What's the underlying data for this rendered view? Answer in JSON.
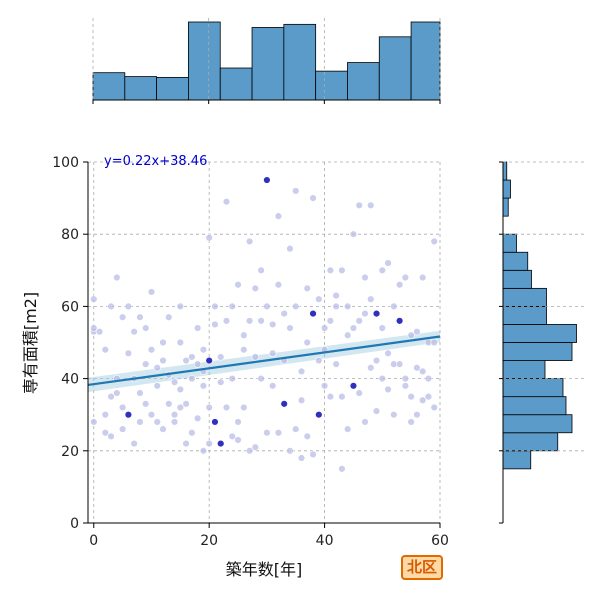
{
  "chart_data": {
    "type": "scatter",
    "xlabel": "築年数[年]",
    "ylabel": "専有面積[m2]",
    "xlim": [
      -1,
      60
    ],
    "ylim": [
      0,
      100
    ],
    "x_ticks": [
      0,
      20,
      40,
      60
    ],
    "y_ticks": [
      0,
      20,
      40,
      60,
      80,
      100
    ],
    "grid": true,
    "regression": {
      "slope": 0.22,
      "intercept": 38.46,
      "label": "y=0.22x+38.46"
    },
    "x_histogram": {
      "bin_edges": [
        0,
        5.5,
        11,
        16.5,
        22,
        27.5,
        33,
        38.5,
        44,
        49.5,
        55,
        60
      ],
      "relative_heights": [
        0.35,
        0.3,
        0.29,
        1.0,
        0.41,
        0.93,
        0.97,
        0.37,
        0.48,
        0.81,
        1.0
      ]
    },
    "y_histogram": {
      "bin_edges": [
        15,
        20,
        25,
        30,
        35,
        40,
        45,
        50,
        55,
        60,
        65,
        70,
        75,
        80,
        85,
        90,
        95,
        100
      ],
      "relative_widths": [
        0.37,
        0.73,
        0.92,
        0.84,
        0.8,
        0.56,
        0.92,
        0.98,
        0.58,
        0.58,
        0.38,
        0.33,
        0.18,
        0.0,
        0.07,
        0.1,
        0.05
      ]
    },
    "points": [
      [
        0,
        62
      ],
      [
        0,
        53
      ],
      [
        0,
        54
      ],
      [
        0,
        28
      ],
      [
        1,
        53
      ],
      [
        2,
        48
      ],
      [
        2,
        30
      ],
      [
        2,
        25
      ],
      [
        3,
        60
      ],
      [
        3,
        35
      ],
      [
        3,
        24
      ],
      [
        4,
        40
      ],
      [
        4,
        36
      ],
      [
        4,
        68
      ],
      [
        5,
        32
      ],
      [
        5,
        26
      ],
      [
        5,
        57
      ],
      [
        6,
        47
      ],
      [
        6,
        60
      ],
      [
        6,
        30
      ],
      [
        7,
        53
      ],
      [
        7,
        40
      ],
      [
        7,
        22
      ],
      [
        8,
        36
      ],
      [
        8,
        28
      ],
      [
        8,
        57
      ],
      [
        9,
        44
      ],
      [
        9,
        54
      ],
      [
        9,
        33
      ],
      [
        10,
        30
      ],
      [
        10,
        48
      ],
      [
        10,
        64
      ],
      [
        11,
        38
      ],
      [
        11,
        28
      ],
      [
        11,
        43
      ],
      [
        12,
        50
      ],
      [
        12,
        26
      ],
      [
        12,
        45
      ],
      [
        13,
        41
      ],
      [
        13,
        33
      ],
      [
        13,
        57
      ],
      [
        14,
        28
      ],
      [
        14,
        39
      ],
      [
        14,
        30
      ],
      [
        15,
        37
      ],
      [
        15,
        32
      ],
      [
        15,
        50
      ],
      [
        15,
        60
      ],
      [
        16,
        33
      ],
      [
        16,
        22
      ],
      [
        16,
        45
      ],
      [
        17,
        46
      ],
      [
        17,
        25
      ],
      [
        17,
        40
      ],
      [
        18,
        29
      ],
      [
        18,
        54
      ],
      [
        18,
        44
      ],
      [
        19,
        20
      ],
      [
        19,
        48
      ],
      [
        19,
        38
      ],
      [
        19,
        42
      ],
      [
        20,
        22
      ],
      [
        20,
        32
      ],
      [
        20,
        45
      ],
      [
        20,
        79
      ],
      [
        21,
        60
      ],
      [
        21,
        28
      ],
      [
        21,
        55
      ],
      [
        22,
        22
      ],
      [
        22,
        39
      ],
      [
        22,
        46
      ],
      [
        23,
        89
      ],
      [
        23,
        56
      ],
      [
        23,
        32
      ],
      [
        24,
        24
      ],
      [
        24,
        40
      ],
      [
        24,
        60
      ],
      [
        25,
        28
      ],
      [
        25,
        23
      ],
      [
        25,
        66
      ],
      [
        26,
        48
      ],
      [
        26,
        32
      ],
      [
        26,
        52
      ],
      [
        27,
        20
      ],
      [
        27,
        56
      ],
      [
        27,
        78
      ],
      [
        28,
        21
      ],
      [
        28,
        46
      ],
      [
        28,
        65
      ],
      [
        29,
        40
      ],
      [
        29,
        56
      ],
      [
        29,
        70
      ],
      [
        30,
        25
      ],
      [
        30,
        60
      ],
      [
        30,
        95
      ],
      [
        31,
        38
      ],
      [
        31,
        47
      ],
      [
        31,
        55
      ],
      [
        32,
        25
      ],
      [
        32,
        66
      ],
      [
        32,
        85
      ],
      [
        33,
        33
      ],
      [
        33,
        45
      ],
      [
        33,
        58
      ],
      [
        34,
        20
      ],
      [
        34,
        54
      ],
      [
        34,
        76
      ],
      [
        35,
        26
      ],
      [
        35,
        60
      ],
      [
        35,
        92
      ],
      [
        36,
        34
      ],
      [
        36,
        42
      ],
      [
        36,
        18
      ],
      [
        37,
        24
      ],
      [
        37,
        65
      ],
      [
        37,
        50
      ],
      [
        38,
        19
      ],
      [
        38,
        58
      ],
      [
        38,
        90
      ],
      [
        39,
        30
      ],
      [
        39,
        62
      ],
      [
        39,
        45
      ],
      [
        40,
        48
      ],
      [
        40,
        38
      ],
      [
        40,
        54
      ],
      [
        41,
        56
      ],
      [
        41,
        35
      ],
      [
        41,
        70
      ],
      [
        42,
        60
      ],
      [
        42,
        63
      ],
      [
        42,
        44
      ],
      [
        43,
        35
      ],
      [
        43,
        70
      ],
      [
        43,
        15
      ],
      [
        44,
        52
      ],
      [
        44,
        26
      ],
      [
        44,
        60
      ],
      [
        45,
        54
      ],
      [
        45,
        80
      ],
      [
        45,
        38
      ],
      [
        46,
        36
      ],
      [
        46,
        88
      ],
      [
        46,
        56
      ],
      [
        47,
        28
      ],
      [
        47,
        58
      ],
      [
        47,
        68
      ],
      [
        48,
        62
      ],
      [
        48,
        43
      ],
      [
        48,
        88
      ],
      [
        49,
        31
      ],
      [
        49,
        58
      ],
      [
        49,
        45
      ],
      [
        50,
        40
      ],
      [
        50,
        54
      ],
      [
        50,
        70
      ],
      [
        51,
        47
      ],
      [
        51,
        37
      ],
      [
        51,
        72
      ],
      [
        52,
        30
      ],
      [
        52,
        60
      ],
      [
        52,
        44
      ],
      [
        53,
        44
      ],
      [
        53,
        56
      ],
      [
        53,
        66
      ],
      [
        54,
        38
      ],
      [
        54,
        40
      ],
      [
        54,
        68
      ],
      [
        55,
        35
      ],
      [
        55,
        52
      ],
      [
        55,
        28
      ],
      [
        56,
        53
      ],
      [
        56,
        43
      ],
      [
        56,
        30
      ],
      [
        57,
        42
      ],
      [
        57,
        34
      ],
      [
        57,
        68
      ],
      [
        58,
        35
      ],
      [
        58,
        40
      ],
      [
        58,
        50
      ],
      [
        59,
        32
      ],
      [
        59,
        50
      ],
      [
        59,
        78
      ]
    ]
  },
  "region_badge": "北区",
  "colors": {
    "point_light": "#b8bce6",
    "point_dark": "#1a1ab8",
    "regression_line": "#1f77b4",
    "histogram_fill": "#5b9bc9",
    "badge_fill": "#ffd9a6",
    "badge_border": "#e06a00"
  }
}
